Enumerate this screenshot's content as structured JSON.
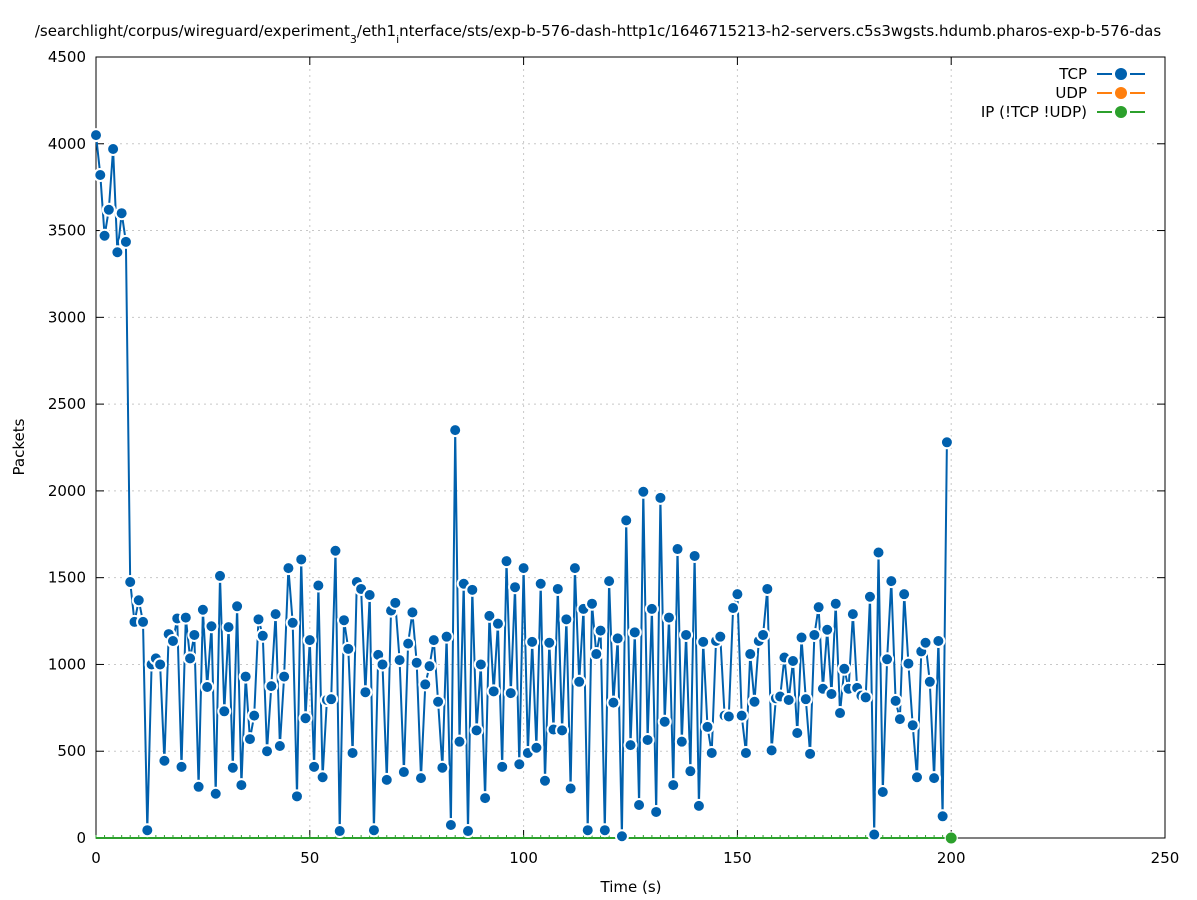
{
  "chart_data": {
    "type": "line",
    "title": "/searchlight/corpus/wireguard/experiment_3/eth1_interface/sts/exp-b-576-dash-http1c/1646715213-h2-servers.c5s3wgsts.hdumb.pharos-exp-b-576-das",
    "xlabel": "Time (s)",
    "ylabel": "Packets",
    "xlim": [
      0,
      250
    ],
    "ylim": [
      0,
      4500
    ],
    "xticks": [
      0,
      50,
      100,
      150,
      200,
      250
    ],
    "yticks": [
      0,
      500,
      1000,
      1500,
      2000,
      2500,
      3000,
      3500,
      4000,
      4500
    ],
    "grid": true,
    "legend_position": "top-right",
    "series": [
      {
        "name": "TCP",
        "color": "#0060ad",
        "values": [
          4050,
          3820,
          3470,
          3620,
          3970,
          3375,
          3600,
          3435,
          1475,
          1245,
          1370,
          1245,
          45,
          1000,
          1035,
          1000,
          445,
          1175,
          1135,
          1265,
          410,
          1270,
          1035,
          1170,
          295,
          1315,
          870,
          1220,
          255,
          1510,
          730,
          1215,
          405,
          1335,
          305,
          930,
          570,
          705,
          1260,
          1165,
          500,
          875,
          1290,
          530,
          930,
          1555,
          1240,
          240,
          1605,
          690,
          1140,
          410,
          1455,
          350,
          795,
          800,
          1655,
          40,
          1255,
          1090,
          490,
          1475,
          1435,
          840,
          1400,
          45,
          1055,
          1000,
          335,
          1310,
          1355,
          1025,
          380,
          1120,
          1300,
          1010,
          345,
          885,
          990,
          1140,
          785,
          405,
          1160,
          75,
          2350,
          555,
          1465,
          40,
          1430,
          620,
          1000,
          230,
          1280,
          845,
          1235,
          410,
          1595,
          835,
          1445,
          425,
          1555,
          490,
          1130,
          520,
          1465,
          330,
          1125,
          625,
          1435,
          620,
          1260,
          285,
          1555,
          900,
          1320,
          45,
          1350,
          1060,
          1195,
          45,
          1480,
          780,
          1150,
          10,
          1830,
          535,
          1185,
          190,
          1995,
          565,
          1320,
          150,
          1960,
          670,
          1270,
          305,
          1665,
          555,
          1170,
          385,
          1625,
          185,
          1130,
          640,
          490,
          1135,
          1160,
          705,
          700,
          1325,
          1405,
          705,
          490,
          1060,
          785,
          1135,
          1170,
          1435,
          505,
          805,
          815,
          1040,
          795,
          1020,
          605,
          1155,
          800,
          485,
          1170,
          1330,
          860,
          1200,
          830,
          1350,
          720,
          975,
          860,
          1290,
          865,
          820,
          810,
          1390,
          20,
          1645,
          265,
          1030,
          1480,
          790,
          685,
          1405,
          1005,
          650,
          350,
          1075,
          1125,
          900,
          345,
          1135,
          125,
          2280
        ]
      },
      {
        "name": "UDP",
        "color": "#ff7f0e",
        "values_constant": 0,
        "x_range": [
          0,
          200
        ]
      },
      {
        "name": "IP (!TCP  !UDP)",
        "color": "#2ca02c",
        "values_constant": 0,
        "x_range": [
          0,
          200
        ]
      }
    ]
  }
}
